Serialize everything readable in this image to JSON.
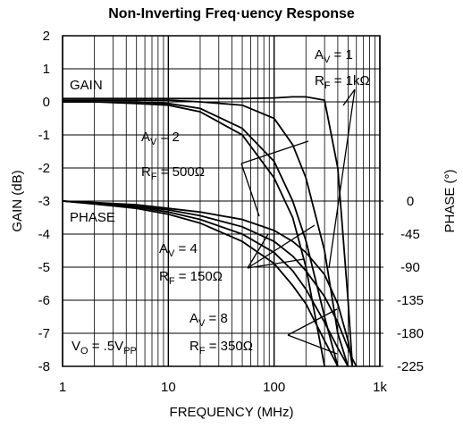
{
  "chart_data": {
    "type": "line",
    "title": "Non-Inverting Freq·uency Response",
    "xlabel": "FREQUENCY (MHz)",
    "ylabel": "GAIN (dB)",
    "y2label": "PHASE (°)",
    "xscale": "log",
    "xlim": [
      1,
      1000
    ],
    "xticks": [
      1,
      10,
      100,
      {
        "value": 1000,
        "label": "1k"
      }
    ],
    "ylim": [
      -8,
      2
    ],
    "yticks": [
      2,
      1,
      0,
      -1,
      -2,
      -3,
      -4,
      -5,
      -6,
      -7,
      -8
    ],
    "y2lim": [
      -225,
      225
    ],
    "y2ticks": [
      0,
      -45,
      -90,
      -135,
      -180,
      -225
    ],
    "grid": true,
    "x": [
      1,
      2,
      5,
      10,
      20,
      50,
      100,
      150,
      200,
      300,
      400,
      500,
      550,
      600,
      700
    ],
    "series": [
      {
        "color": "#000000",
        "values": [
          0.1,
          0.1,
          0.1,
          0.1,
          0.1,
          0.1,
          0.12,
          0.15,
          0.15,
          0.05,
          -2,
          -6,
          -8,
          null,
          null
        ]
      },
      {
        "color": "#000000",
        "values": [
          0.05,
          0.05,
          0.05,
          0.05,
          0,
          -0.1,
          -0.5,
          -1.3,
          -2.3,
          -4.5,
          -7,
          -8,
          null,
          null,
          null
        ]
      },
      {
        "color": "#000000",
        "values": [
          0,
          0,
          0,
          -0.05,
          -0.2,
          -0.8,
          -1.8,
          -3,
          -4.2,
          -6.5,
          -8,
          null,
          null,
          null,
          null
        ]
      },
      {
        "color": "#000000",
        "values": [
          0,
          0,
          -0.05,
          -0.1,
          -0.3,
          -1,
          -2.3,
          -3.5,
          -5,
          -8,
          null,
          null,
          null,
          null,
          null
        ]
      },
      {
        "color": "#000000",
        "axis": "y2",
        "values": [
          0,
          -2,
          -5,
          -10,
          -15,
          -25,
          -40,
          -55,
          -70,
          -100,
          -140,
          -190,
          -225,
          null,
          null
        ]
      },
      {
        "color": "#000000",
        "axis": "y2",
        "values": [
          0,
          -3,
          -7,
          -12,
          -20,
          -35,
          -55,
          -75,
          -95,
          -130,
          -165,
          -200,
          -215,
          -225,
          null
        ]
      },
      {
        "color": "#000000",
        "axis": "y2",
        "values": [
          0,
          -3,
          -8,
          -15,
          -25,
          -45,
          -70,
          -95,
          -120,
          -165,
          -200,
          -225,
          null,
          null,
          null
        ]
      },
      {
        "color": "#000000",
        "axis": "y2",
        "values": [
          0,
          -4,
          -10,
          -18,
          -30,
          -55,
          -85,
          -115,
          -140,
          -190,
          -225,
          null,
          null,
          null,
          null
        ]
      }
    ],
    "annotations": [
      [
        "GAIN"
      ],
      [
        "PHASE"
      ],
      [
        "A",
        "V",
        " = 1"
      ],
      [
        "R",
        "F",
        " = 1kΩ"
      ],
      [
        "A",
        "V",
        " = 2"
      ],
      [
        "R",
        "F",
        " = 500Ω"
      ],
      [
        "A",
        "V",
        " = 4"
      ],
      [
        "R",
        "F",
        " = 150Ω"
      ],
      [
        "A",
        "V",
        " = 8"
      ],
      [
        "R",
        "F",
        " = 350Ω"
      ],
      [
        "V",
        "O",
        " = .5V",
        "PP"
      ]
    ]
  }
}
